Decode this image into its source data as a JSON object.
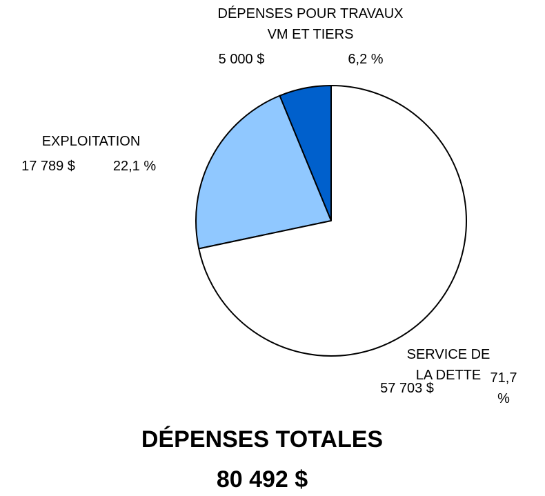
{
  "chart_data": {
    "type": "pie",
    "title": "DÉPENSES TOTALES",
    "total": 80492,
    "total_label": "80 492 $",
    "categories": [
      "DÉPENSES  POUR TRAVAUX\nVM ET TIERS",
      "EXPLOITATION",
      "SERVICE DE LA DETTE"
    ],
    "values": [
      5000,
      17789,
      57703
    ],
    "value_labels": [
      "5 000 $",
      "17 789 $",
      "57 703 $"
    ],
    "percents": [
      6.2,
      22.1,
      71.7
    ],
    "percent_labels": [
      "6,2 %",
      "22,1 %",
      "71,7 %"
    ],
    "colors": [
      "#0060cc",
      "#90c8ff",
      "#ffffff"
    ]
  }
}
